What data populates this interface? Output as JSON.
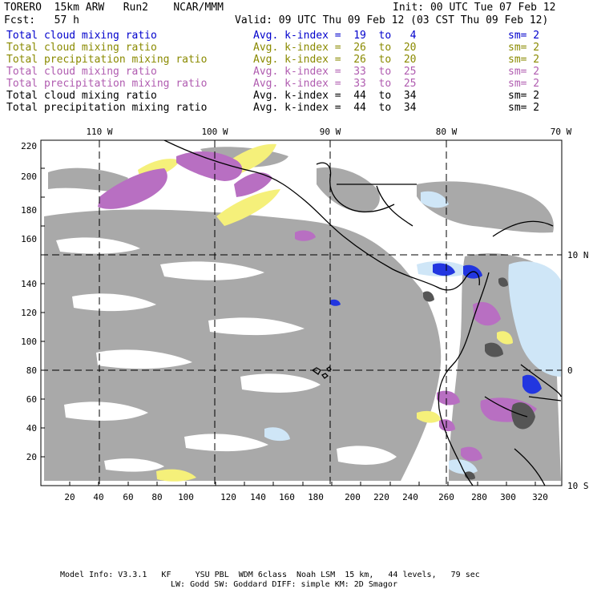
{
  "header": {
    "title": "TORERO  15km ARW   Run2    NCAR/MMM",
    "init": "Init: 00 UTC Tue 07 Feb 12",
    "fcst": "Fcst:   57 h",
    "valid": "Valid: 09 UTC Thu 09 Feb 12 (03 CST Thu 09 Feb 12)"
  },
  "legend": [
    {
      "label": "Total cloud mixing ratio",
      "kidx": "Avg. k-index =  19  to   4",
      "sm": "sm= 2",
      "color": "#0000cc"
    },
    {
      "label": "Total cloud mixing ratio",
      "kidx": "Avg. k-index =  26  to  20",
      "sm": "sm= 2",
      "color": "#8a8a00"
    },
    {
      "label": "Total precipitation mixing ratio",
      "kidx": "Avg. k-index =  26  to  20",
      "sm": "sm= 2",
      "color": "#8a8a00"
    },
    {
      "label": "Total cloud mixing ratio",
      "kidx": "Avg. k-index =  33  to  25",
      "sm": "sm= 2",
      "color": "#b05cb0"
    },
    {
      "label": "Total precipitation mixing ratio",
      "kidx": "Avg. k-index =  33  to  25",
      "sm": "sm= 2",
      "color": "#b05cb0"
    },
    {
      "label": "Total cloud mixing ratio",
      "kidx": "Avg. k-index =  44  to  34",
      "sm": "sm= 2",
      "color": "#000000"
    },
    {
      "label": "Total precipitation mixing ratio",
      "kidx": "Avg. k-index =  44  to  34",
      "sm": "sm= 2",
      "color": "#000000"
    }
  ],
  "map": {
    "x_ticks": [
      "20",
      "40",
      "60",
      "80",
      "100",
      "120",
      "140",
      "160",
      "180",
      "200",
      "220",
      "240",
      "260",
      "280",
      "300",
      "320"
    ],
    "y_ticks": [
      "20",
      "40",
      "60",
      "80",
      "100",
      "120",
      "140",
      "160",
      "180",
      "200",
      "220"
    ],
    "lon_labels": [
      "110 W",
      "100 W",
      "90 W",
      "80 W",
      "70 W"
    ],
    "lat_labels": [
      "10 N",
      "0",
      "10 S"
    ],
    "colors": {
      "cloud_gray": "#a9a9a9",
      "dark_gray": "#555555",
      "yellow": "#f5f07a",
      "purple": "#b86fc2",
      "light_blue": "#cfe6f7",
      "blue": "#2236e0"
    }
  },
  "footer": {
    "line1": "Model Info: V3.3.1   KF     YSU PBL  WDM 6class  Noah LSM  15 km,   44 levels,   79 sec",
    "line2": "LW: Godd SW: Goddard DIFF: simple KM: 2D Smagor"
  }
}
